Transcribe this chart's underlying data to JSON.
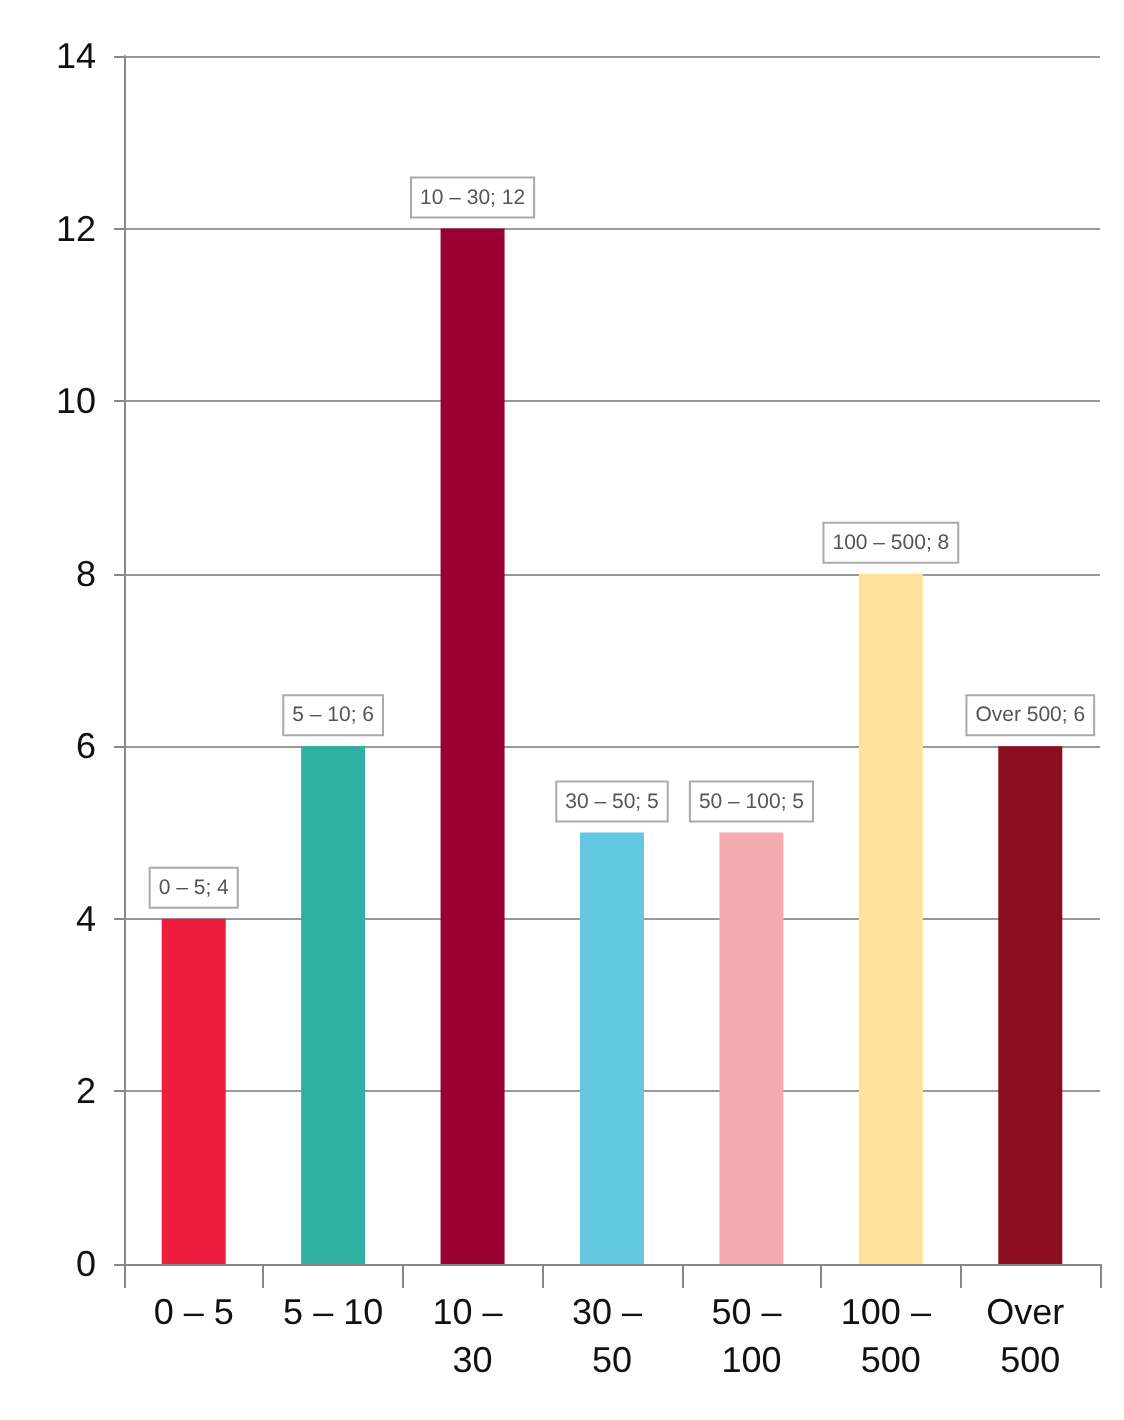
{
  "chart_data": {
    "type": "bar",
    "categories": [
      "0 – 5",
      "5 – 10",
      "10 – 30",
      "30 – 50",
      "50 – 100",
      "100 – 500",
      "Over 500"
    ],
    "values": [
      4,
      6,
      12,
      5,
      5,
      8,
      6
    ],
    "colors": [
      "#ee1c3e",
      "#2eb1a2",
      "#9b0032",
      "#63c9e1",
      "#f4abb0",
      "#ffe19b",
      "#8c0d22"
    ],
    "value_labels": [
      "0 – 5; 4",
      "5 – 10; 6",
      "10 – 30; 12",
      "30 – 50; 5",
      "50 – 100; 5",
      "100 – 500; 8",
      "Over 500; 6"
    ],
    "ylim": [
      0,
      14
    ],
    "yticks": [
      0,
      2,
      4,
      6,
      8,
      10,
      12,
      14
    ],
    "grid": "y"
  }
}
